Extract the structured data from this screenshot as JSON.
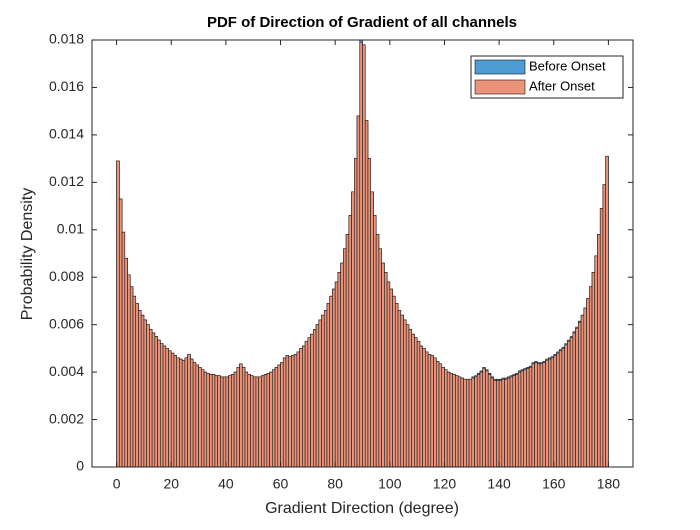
{
  "chart_data": {
    "type": "histogram",
    "title": "PDF of Direction of Gradient of all channels",
    "x_label": "Gradient Direction (degree)",
    "y_label": "Probability Density",
    "legend_position": "upper right",
    "xlim": [
      -9,
      189
    ],
    "xticks": [
      0,
      20,
      40,
      60,
      80,
      100,
      120,
      140,
      160,
      180
    ],
    "ylim": [
      0,
      0.018
    ],
    "yticks": [
      0,
      0.002,
      0.004,
      0.006,
      0.008,
      0.01,
      0.012,
      0.014,
      0.016,
      0.018
    ],
    "bins": [
      0,
      1,
      2,
      3,
      4,
      5,
      6,
      7,
      8,
      9,
      10,
      11,
      12,
      13,
      14,
      15,
      16,
      17,
      18,
      19,
      20,
      21,
      22,
      23,
      24,
      25,
      26,
      27,
      28,
      29,
      30,
      31,
      32,
      33,
      34,
      35,
      36,
      37,
      38,
      39,
      40,
      41,
      42,
      43,
      44,
      45,
      46,
      47,
      48,
      49,
      50,
      51,
      52,
      53,
      54,
      55,
      56,
      57,
      58,
      59,
      60,
      61,
      62,
      63,
      64,
      65,
      66,
      67,
      68,
      69,
      70,
      71,
      72,
      73,
      74,
      75,
      76,
      77,
      78,
      79,
      80,
      81,
      82,
      83,
      84,
      85,
      86,
      87,
      88,
      89,
      90,
      91,
      92,
      93,
      94,
      95,
      96,
      97,
      98,
      99,
      100,
      101,
      102,
      103,
      104,
      105,
      106,
      107,
      108,
      109,
      110,
      111,
      112,
      113,
      114,
      115,
      116,
      117,
      118,
      119,
      120,
      121,
      122,
      123,
      124,
      125,
      126,
      127,
      128,
      129,
      130,
      131,
      132,
      133,
      134,
      135,
      136,
      137,
      138,
      139,
      140,
      141,
      142,
      143,
      144,
      145,
      146,
      147,
      148,
      149,
      150,
      151,
      152,
      153,
      154,
      155,
      156,
      157,
      158,
      159,
      160,
      161,
      162,
      163,
      164,
      165,
      166,
      167,
      168,
      169,
      170,
      171,
      172,
      173,
      174,
      175,
      176,
      177,
      178,
      179,
      180
    ],
    "series": [
      {
        "name": "Before Onset",
        "color": "#4d9cd4",
        "values": [
          0.0129,
          0.0113,
          0.0099,
          0.0088,
          0.0081,
          0.0076,
          0.0072,
          0.0069,
          0.0066,
          0.0064,
          0.0062,
          0.006,
          0.0058,
          0.00565,
          0.0055,
          0.00535,
          0.0052,
          0.0051,
          0.005,
          0.0049,
          0.0048,
          0.0047,
          0.0046,
          0.00455,
          0.0045,
          0.0046,
          0.00475,
          0.00455,
          0.0044,
          0.0043,
          0.0042,
          0.0041,
          0.004,
          0.00395,
          0.0039,
          0.0039,
          0.00385,
          0.00385,
          0.0038,
          0.0038,
          0.0038,
          0.00385,
          0.0039,
          0.004,
          0.0042,
          0.00435,
          0.0042,
          0.004,
          0.0039,
          0.00385,
          0.0038,
          0.0038,
          0.0038,
          0.00385,
          0.0039,
          0.00395,
          0.004,
          0.0041,
          0.0042,
          0.0043,
          0.0044,
          0.0046,
          0.0047,
          0.00465,
          0.0047,
          0.00475,
          0.00485,
          0.005,
          0.0051,
          0.0053,
          0.00545,
          0.0056,
          0.0058,
          0.006,
          0.0062,
          0.0064,
          0.0066,
          0.0069,
          0.0072,
          0.0075,
          0.0078,
          0.0082,
          0.0086,
          0.0092,
          0.0098,
          0.0106,
          0.0116,
          0.013,
          0.0148,
          0.018,
          0.0178,
          0.0146,
          0.013,
          0.0116,
          0.0106,
          0.0098,
          0.0092,
          0.0086,
          0.0082,
          0.0078,
          0.0075,
          0.0072,
          0.0069,
          0.0066,
          0.0064,
          0.0062,
          0.006,
          0.0058,
          0.0056,
          0.00545,
          0.0053,
          0.0051,
          0.005,
          0.00485,
          0.00475,
          0.0047,
          0.0046,
          0.00445,
          0.00435,
          0.0042,
          0.0041,
          0.004,
          0.00395,
          0.0039,
          0.00385,
          0.0038,
          0.00375,
          0.0037,
          0.0037,
          0.0037,
          0.0038,
          0.00385,
          0.00395,
          0.00405,
          0.0042,
          0.0041,
          0.00395,
          0.0038,
          0.0037,
          0.0037,
          0.0037,
          0.00375,
          0.00375,
          0.0038,
          0.00385,
          0.0039,
          0.00395,
          0.00405,
          0.0041,
          0.00415,
          0.0042,
          0.00425,
          0.0044,
          0.00445,
          0.0044,
          0.0044,
          0.00445,
          0.00455,
          0.0046,
          0.00465,
          0.00475,
          0.00485,
          0.00495,
          0.00505,
          0.0052,
          0.00535,
          0.0055,
          0.0057,
          0.0059,
          0.00615,
          0.0064,
          0.0067,
          0.0071,
          0.0076,
          0.0082,
          0.0089,
          0.0098,
          0.0109,
          0.0119,
          0.0131
        ]
      },
      {
        "name": "After Onset",
        "color": "#eb9379",
        "values": [
          0.0129,
          0.0113,
          0.0099,
          0.0088,
          0.0081,
          0.0076,
          0.0072,
          0.0069,
          0.0066,
          0.0064,
          0.0062,
          0.006,
          0.0058,
          0.00565,
          0.0055,
          0.00535,
          0.0052,
          0.0051,
          0.005,
          0.0049,
          0.0048,
          0.0047,
          0.0046,
          0.00455,
          0.0045,
          0.0046,
          0.00475,
          0.00455,
          0.0044,
          0.0043,
          0.0042,
          0.0041,
          0.004,
          0.00395,
          0.0039,
          0.0039,
          0.00385,
          0.00385,
          0.0038,
          0.0038,
          0.0038,
          0.00385,
          0.0039,
          0.004,
          0.0042,
          0.00435,
          0.0042,
          0.004,
          0.0039,
          0.00385,
          0.0038,
          0.0038,
          0.0038,
          0.00385,
          0.0039,
          0.00395,
          0.004,
          0.0041,
          0.0042,
          0.0043,
          0.0044,
          0.0046,
          0.0047,
          0.00465,
          0.0047,
          0.00475,
          0.00485,
          0.005,
          0.0051,
          0.0053,
          0.00545,
          0.0056,
          0.0058,
          0.006,
          0.0062,
          0.0064,
          0.0066,
          0.0069,
          0.0072,
          0.0075,
          0.0078,
          0.0082,
          0.0086,
          0.0092,
          0.0098,
          0.0106,
          0.0116,
          0.013,
          0.0148,
          0.0179,
          0.0178,
          0.0146,
          0.013,
          0.0116,
          0.0106,
          0.0098,
          0.0092,
          0.0086,
          0.0082,
          0.0078,
          0.0075,
          0.0072,
          0.0069,
          0.0066,
          0.0064,
          0.0062,
          0.006,
          0.0058,
          0.0056,
          0.00545,
          0.0053,
          0.0051,
          0.005,
          0.00485,
          0.00475,
          0.0047,
          0.0046,
          0.00445,
          0.00435,
          0.0042,
          0.0041,
          0.004,
          0.00395,
          0.0039,
          0.00385,
          0.0038,
          0.00375,
          0.0037,
          0.0037,
          0.0037,
          0.00375,
          0.0038,
          0.0039,
          0.004,
          0.00415,
          0.00405,
          0.0039,
          0.00375,
          0.00365,
          0.00365,
          0.00365,
          0.0037,
          0.0037,
          0.00375,
          0.0038,
          0.00385,
          0.0039,
          0.004,
          0.00405,
          0.0041,
          0.00415,
          0.0042,
          0.00435,
          0.0044,
          0.00435,
          0.00435,
          0.0044,
          0.0045,
          0.00455,
          0.0046,
          0.0047,
          0.0048,
          0.0049,
          0.005,
          0.00515,
          0.0053,
          0.00545,
          0.00565,
          0.00585,
          0.0061,
          0.0064,
          0.0067,
          0.0071,
          0.0076,
          0.0082,
          0.0089,
          0.0098,
          0.0109,
          0.0119,
          0.0131
        ]
      }
    ]
  }
}
